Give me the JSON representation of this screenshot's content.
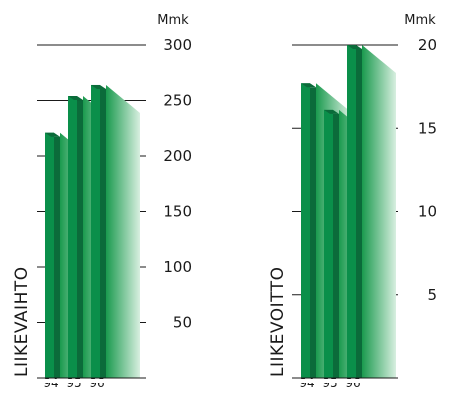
{
  "colors": {
    "bar_front": "#0a8f4a",
    "bar_side": "#0b6b3a",
    "fade_start": "#1a9a4e",
    "fade_end": "#d8efe0",
    "grid": "#1a1a1a"
  },
  "chart_data": [
    {
      "type": "bar",
      "categories": [
        "94",
        "95",
        "96"
      ],
      "values": [
        221,
        254,
        264
      ],
      "ylabel": "LIIKEVAIHTO",
      "unit": "Mmk",
      "ylim": [
        0,
        300
      ],
      "yticks": [
        50,
        100,
        150,
        200,
        250,
        300
      ],
      "grid": true
    },
    {
      "type": "bar",
      "categories": [
        "94",
        "95",
        "96"
      ],
      "values": [
        17.7,
        16.1,
        20.0
      ],
      "ylabel": "LIIKEVOITTO",
      "unit": "Mmk",
      "ylim": [
        0,
        20
      ],
      "yticks": [
        5,
        10,
        15,
        20
      ],
      "grid": true
    }
  ]
}
